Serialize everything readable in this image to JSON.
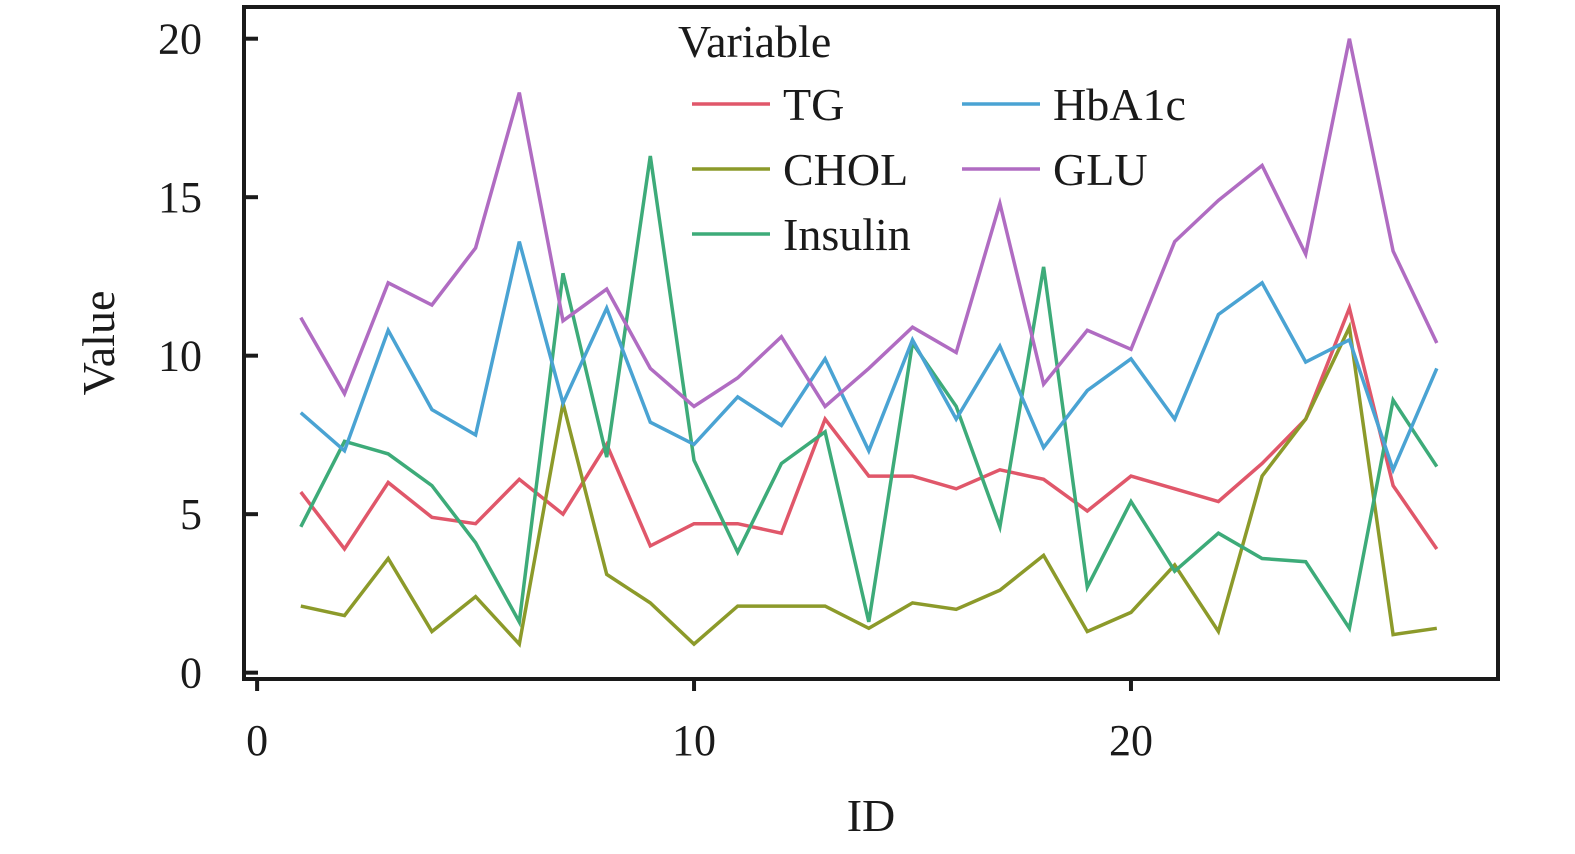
{
  "chart_data": {
    "type": "line",
    "xlabel": "ID",
    "ylabel": "Value",
    "xlim": [
      -0.3,
      28.4
    ],
    "ylim": [
      -0.2,
      21.0
    ],
    "xticks": [
      0,
      10,
      20
    ],
    "yticks": [
      0,
      5,
      10,
      15,
      20
    ],
    "legend": {
      "title": "Variable",
      "position": "top-center",
      "columns": 2
    },
    "x": [
      1,
      2,
      3,
      4,
      5,
      6,
      7,
      8,
      9,
      10,
      11,
      12,
      13,
      14,
      15,
      16,
      17,
      18,
      19,
      20,
      21,
      22,
      23,
      24,
      25,
      26,
      27
    ],
    "series": [
      {
        "name": "TG",
        "color": "#e0576a",
        "values": [
          5.7,
          3.9,
          6.0,
          4.9,
          4.7,
          6.1,
          5.0,
          7.2,
          4.0,
          4.7,
          4.7,
          4.4,
          8.0,
          6.2,
          6.2,
          5.8,
          6.4,
          6.1,
          5.1,
          6.2,
          5.8,
          5.4,
          6.6,
          8.0,
          11.5,
          5.9,
          3.9
        ]
      },
      {
        "name": "CHOL",
        "color": "#8c9a2a",
        "values": [
          2.1,
          1.8,
          3.6,
          1.3,
          2.4,
          0.9,
          8.5,
          3.1,
          2.2,
          0.9,
          2.1,
          2.1,
          2.1,
          1.4,
          2.2,
          2.0,
          2.6,
          3.7,
          1.3,
          1.9,
          3.4,
          1.3,
          6.2,
          8.0,
          10.9,
          1.2,
          1.4
        ]
      },
      {
        "name": "Insulin",
        "color": "#3dab79",
        "values": [
          4.6,
          7.3,
          6.9,
          5.9,
          4.1,
          1.6,
          12.6,
          6.8,
          16.3,
          6.7,
          3.8,
          6.6,
          7.6,
          1.6,
          10.4,
          8.4,
          4.6,
          12.8,
          2.7,
          5.4,
          3.2,
          4.4,
          3.6,
          3.5,
          1.4,
          8.6,
          6.5
        ]
      },
      {
        "name": "HbA1c",
        "color": "#4aa3d3",
        "values": [
          8.2,
          7.0,
          10.8,
          8.3,
          7.5,
          13.6,
          8.5,
          11.5,
          7.9,
          7.2,
          8.7,
          7.8,
          9.9,
          7.0,
          10.5,
          8.0,
          10.3,
          7.1,
          8.9,
          9.9,
          8.0,
          11.3,
          12.3,
          9.8,
          10.5,
          6.4,
          9.6
        ]
      },
      {
        "name": "GLU",
        "color": "#b06cc2",
        "values": [
          11.2,
          8.8,
          12.3,
          11.6,
          13.4,
          18.3,
          11.1,
          12.1,
          9.6,
          8.4,
          9.3,
          10.6,
          8.4,
          9.6,
          10.9,
          10.1,
          14.8,
          9.1,
          10.8,
          10.2,
          13.6,
          14.9,
          16.0,
          13.2,
          20.0,
          13.3,
          10.4
        ]
      }
    ]
  },
  "legend_layout": [
    [
      "TG",
      "HbA1c"
    ],
    [
      "CHOL",
      "GLU"
    ],
    [
      "Insulin"
    ]
  ]
}
